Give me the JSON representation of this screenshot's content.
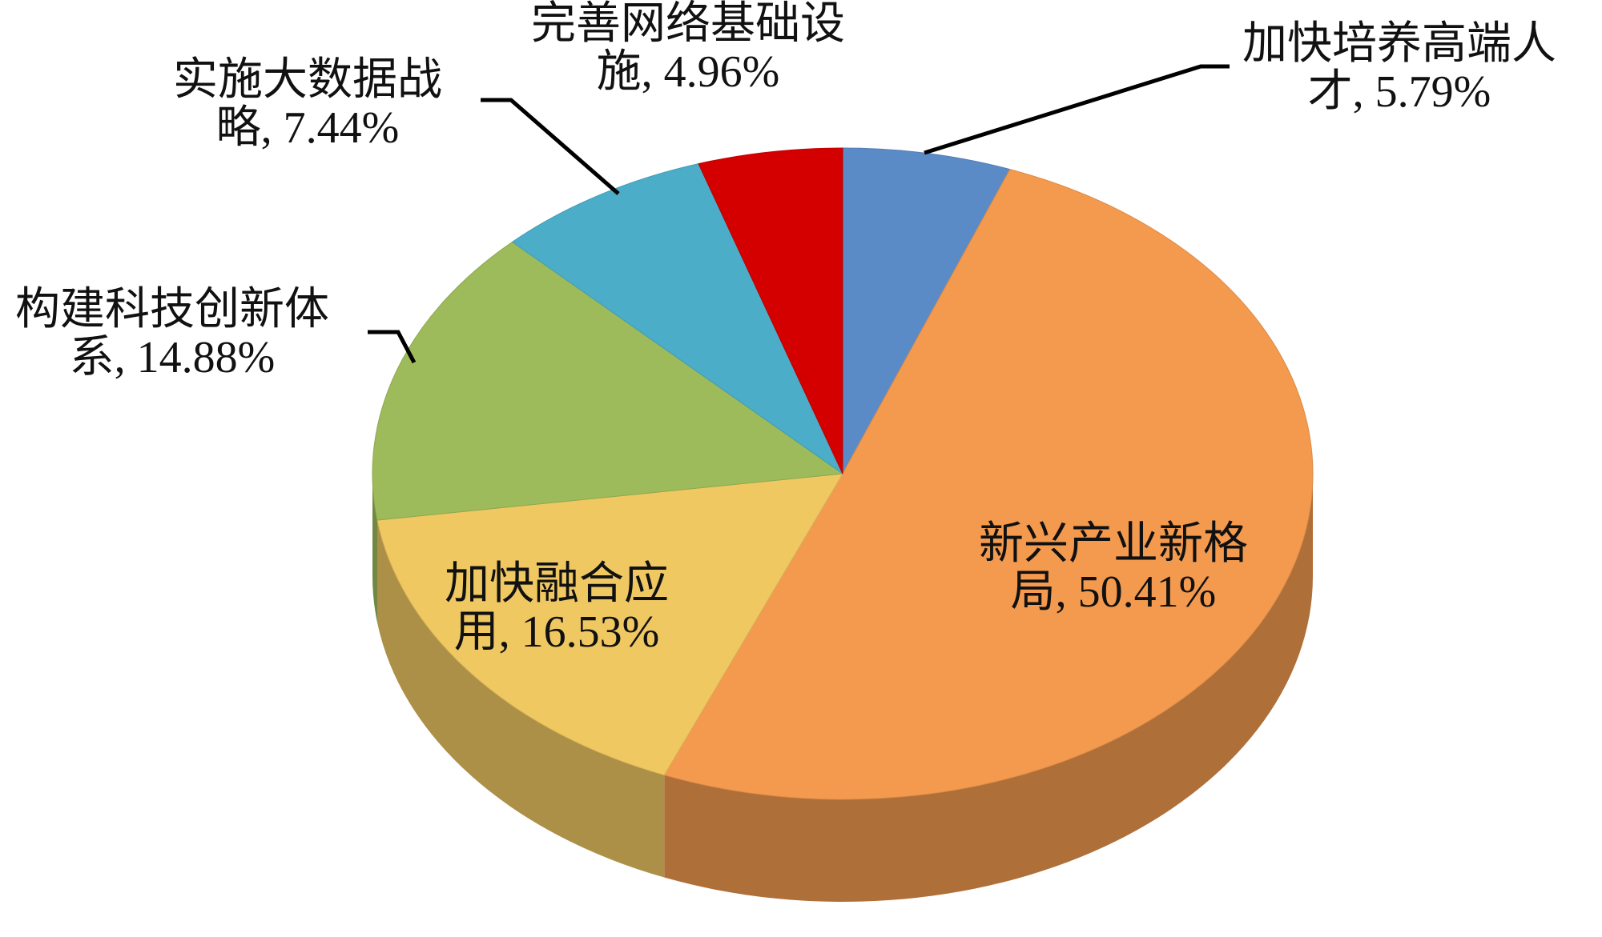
{
  "chart_data": {
    "type": "pie",
    "categories": [
      "加快培养高端人才",
      "新兴产业新格局",
      "加快融合应用",
      "构建科技创新体系",
      "实施大数据战略",
      "完善网络基础设施"
    ],
    "values": [
      5.79,
      50.41,
      16.53,
      14.88,
      7.44,
      4.96
    ],
    "value_labels": [
      "5.79%",
      "50.41%",
      "16.53%",
      "14.88%",
      "7.44%",
      "4.96%"
    ],
    "label_separator": ", ",
    "colors": [
      "#5b8bc7",
      "#f39a4f",
      "#f0c862",
      "#9dbb5b",
      "#4badc8",
      "#d40000"
    ]
  }
}
